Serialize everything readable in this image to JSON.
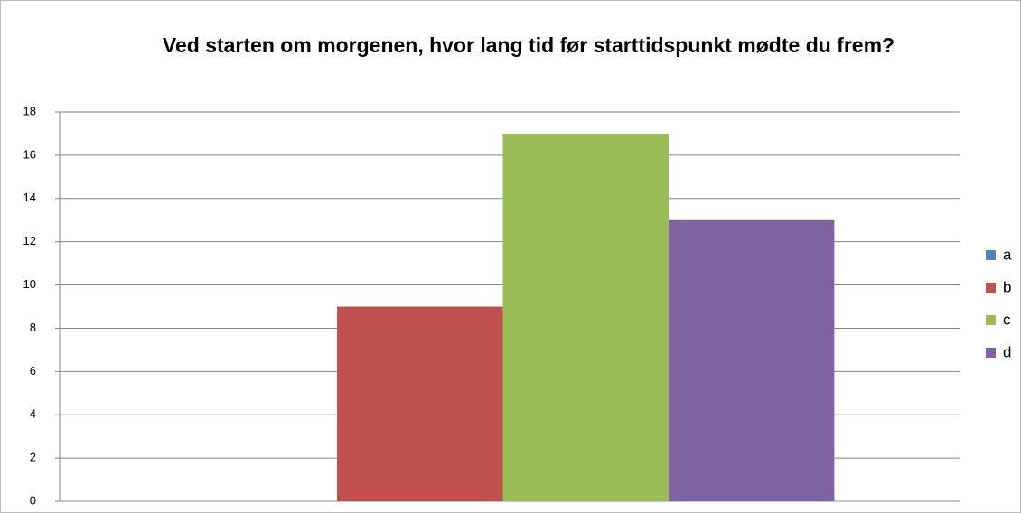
{
  "chart_data": {
    "type": "bar",
    "title": "Ved starten om morgenen, hvor lang tid før starttidspunkt mødte du frem?",
    "categories": [
      null
    ],
    "series": [
      {
        "name": "a",
        "color": "#4f81bd",
        "values": [
          0
        ]
      },
      {
        "name": "b",
        "color": "#c0504d",
        "values": [
          9
        ]
      },
      {
        "name": "c",
        "color": "#9bbb59",
        "values": [
          17
        ]
      },
      {
        "name": "d",
        "color": "#8064a2",
        "values": [
          13
        ]
      }
    ],
    "ylim": [
      0,
      18
    ],
    "yticks": [
      0,
      2,
      4,
      6,
      8,
      10,
      12,
      14,
      16,
      18
    ],
    "grid": true,
    "legend": "right"
  }
}
